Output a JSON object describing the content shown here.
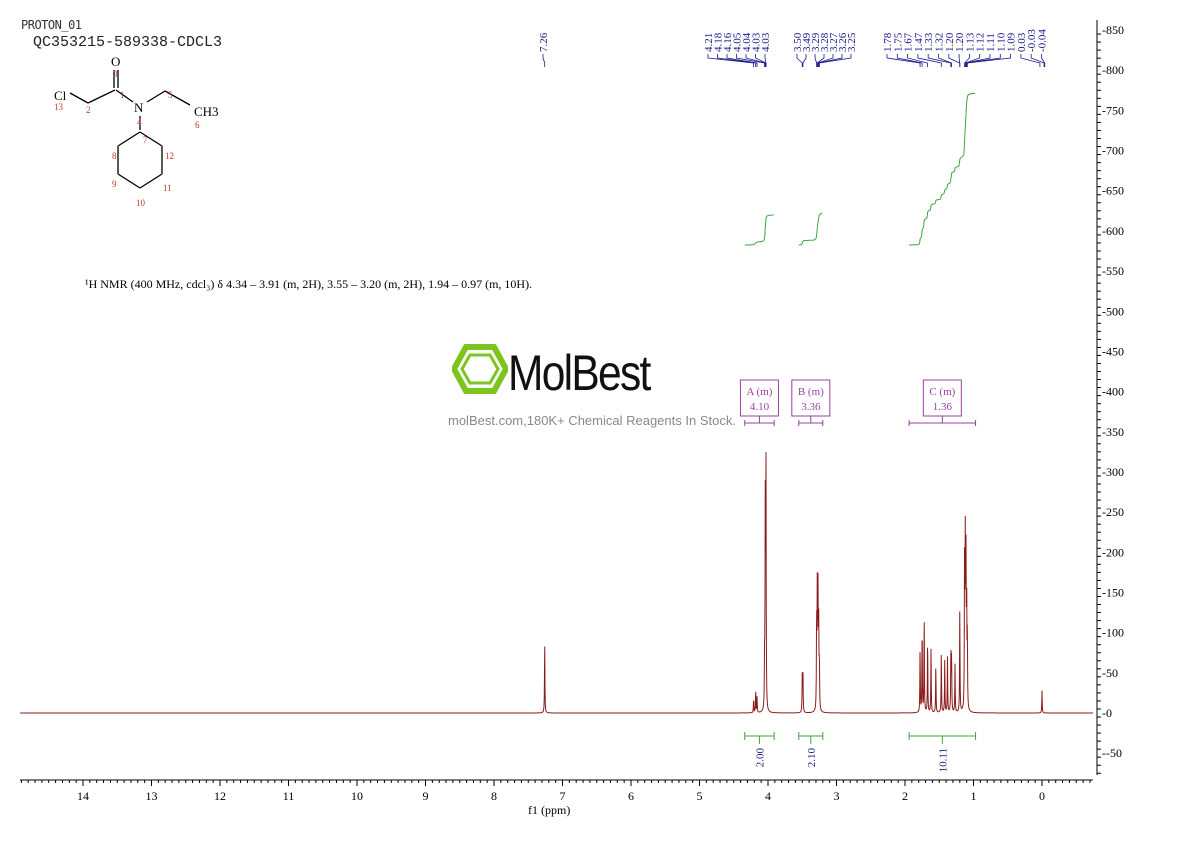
{
  "header": {
    "experiment": "PROTON_01",
    "sample": "QC353215-589338-CDCL3"
  },
  "structure": {
    "atoms": {
      "O": "O",
      "Cl": "Cl",
      "N": "N",
      "CH3": "CH3"
    },
    "numbers": [
      "1",
      "2",
      "3",
      "4",
      "5",
      "6",
      "7",
      "8",
      "9",
      "10",
      "11",
      "12",
      "13"
    ]
  },
  "description": "¹H NMR (400 MHz, cdcl₃) δ 4.34 – 3.91 (m, 2H), 3.55 – 3.20 (m, 2H), 1.94 – 0.97 (m, 10H).",
  "watermark": {
    "brand": "MolBest",
    "tagline": "molBest.com,180K+ Chemical Reagents In Stock."
  },
  "colors": {
    "spectrum": "#8b1a1a",
    "integral": "#3aa83a",
    "labels": "#1a1a8b",
    "multiplet": "#9b3fa0"
  },
  "chart_data": {
    "type": "line",
    "xlabel": "f1 (ppm)",
    "xlim": [
      14.9,
      -0.75
    ],
    "ylim": [
      -80,
      860
    ],
    "xticks": [
      14,
      13,
      12,
      11,
      10,
      9,
      8,
      7,
      6,
      5,
      4,
      3,
      2,
      1,
      0
    ],
    "yticks": [
      850,
      800,
      750,
      700,
      650,
      600,
      550,
      500,
      450,
      400,
      350,
      300,
      250,
      200,
      150,
      100,
      50,
      0,
      -50
    ],
    "peaks": [
      {
        "ppm": 7.26,
        "h": 88
      },
      {
        "ppm": 4.21,
        "h": 18
      },
      {
        "ppm": 4.18,
        "h": 28
      },
      {
        "ppm": 4.16,
        "h": 20
      },
      {
        "ppm": 4.05,
        "h": 60
      },
      {
        "ppm": 4.04,
        "h": 250
      },
      {
        "ppm": 4.03,
        "h": 315
      },
      {
        "ppm": 3.5,
        "h": 45
      },
      {
        "ppm": 3.49,
        "h": 50
      },
      {
        "ppm": 3.29,
        "h": 120
      },
      {
        "ppm": 3.28,
        "h": 155
      },
      {
        "ppm": 3.27,
        "h": 140
      },
      {
        "ppm": 3.26,
        "h": 110
      },
      {
        "ppm": 3.25,
        "h": 60
      },
      {
        "ppm": 1.78,
        "h": 80
      },
      {
        "ppm": 1.75,
        "h": 110
      },
      {
        "ppm": 1.72,
        "h": 120
      },
      {
        "ppm": 1.67,
        "h": 95
      },
      {
        "ppm": 1.62,
        "h": 80
      },
      {
        "ppm": 1.55,
        "h": 60
      },
      {
        "ppm": 1.47,
        "h": 75
      },
      {
        "ppm": 1.42,
        "h": 65
      },
      {
        "ppm": 1.38,
        "h": 70
      },
      {
        "ppm": 1.33,
        "h": 80
      },
      {
        "ppm": 1.32,
        "h": 70
      },
      {
        "ppm": 1.27,
        "h": 60
      },
      {
        "ppm": 1.2,
        "h": 130
      },
      {
        "ppm": 1.13,
        "h": 210
      },
      {
        "ppm": 1.12,
        "h": 200
      },
      {
        "ppm": 1.11,
        "h": 180
      },
      {
        "ppm": 1.1,
        "h": 140
      },
      {
        "ppm": 1.09,
        "h": 90
      },
      {
        "ppm": 0.0,
        "h": 28
      }
    ],
    "peak_labels": [
      {
        "group": [
          "7.26"
        ]
      },
      {
        "group": [
          "4.21",
          "4.18",
          "4.16",
          "4.05",
          "4.04",
          "4.03",
          "4.03"
        ]
      },
      {
        "group": [
          "3.50",
          "3.49",
          "3.29",
          "3.28",
          "3.27",
          "3.26",
          "3.25"
        ]
      },
      {
        "group": [
          "1.78",
          "1.75",
          "1.67",
          "1.47",
          "1.33",
          "1.32",
          "1.20",
          "1.20",
          "1.13",
          "1.12",
          "1.11",
          "1.10",
          "1.09",
          "0.03",
          "-0.03",
          "-0.04"
        ]
      }
    ],
    "multiplets": [
      {
        "label": "A (m)",
        "shift": "4.10",
        "from": 4.34,
        "to": 3.91
      },
      {
        "label": "B (m)",
        "shift": "3.36",
        "from": 3.55,
        "to": 3.2
      },
      {
        "label": "C (m)",
        "shift": "1.36",
        "from": 1.94,
        "to": 0.97
      }
    ],
    "integrals": [
      {
        "from": 4.34,
        "to": 3.91,
        "value": "2.00"
      },
      {
        "from": 3.55,
        "to": 3.2,
        "value": "2.10"
      },
      {
        "from": 1.94,
        "to": 0.97,
        "value": "10.11"
      }
    ]
  }
}
